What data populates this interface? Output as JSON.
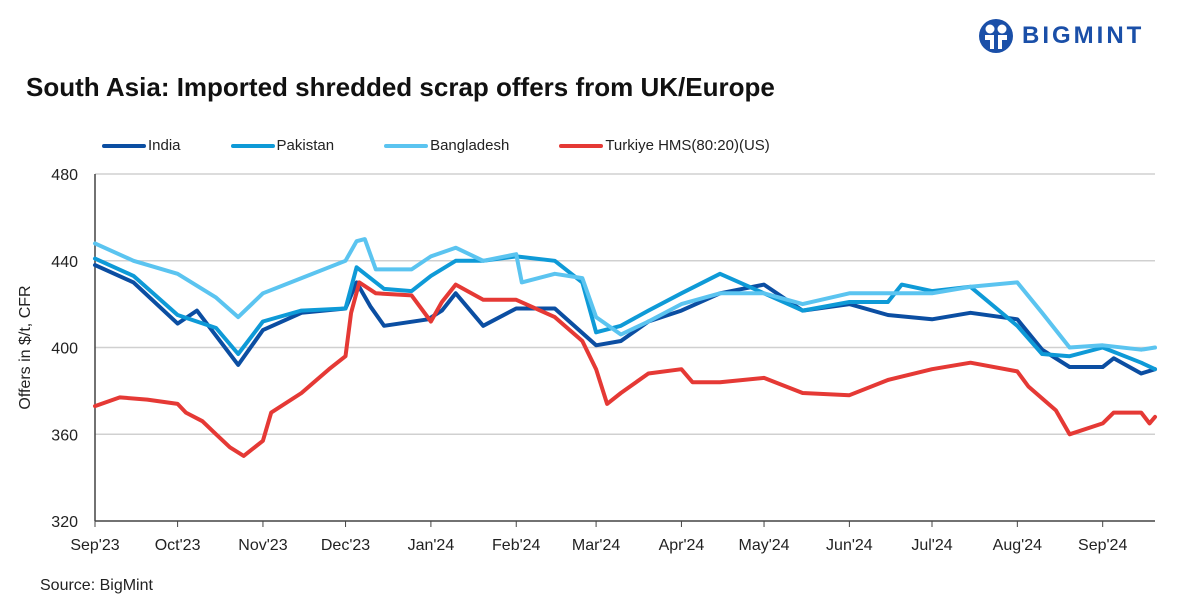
{
  "brand": {
    "name": "BIGMINT",
    "color": "#1a4fa8"
  },
  "title": "South Asia: Imported shredded scrap offers from UK/Europe",
  "source": "Source: BigMint",
  "chart_data": {
    "type": "line",
    "title": "South Asia: Imported shredded scrap offers from UK/Europe",
    "xlabel": "",
    "ylabel": "Offers in $/t, CFR",
    "ylim": [
      320,
      480
    ],
    "yticks": [
      "320",
      "360",
      "400",
      "440",
      "480"
    ],
    "xlim": [
      "2023-09-01",
      "2024-09-20"
    ],
    "xticks": [
      {
        "label": "Sep'23",
        "date": "2023-09-01"
      },
      {
        "label": "Oct'23",
        "date": "2023-10-01"
      },
      {
        "label": "Nov'23",
        "date": "2023-11-01"
      },
      {
        "label": "Dec'23",
        "date": "2023-12-01"
      },
      {
        "label": "Jan'24",
        "date": "2024-01-01"
      },
      {
        "label": "Feb'24",
        "date": "2024-02-01"
      },
      {
        "label": "Mar'24",
        "date": "2024-03-01"
      },
      {
        "label": "Apr'24",
        "date": "2024-04-01"
      },
      {
        "label": "May'24",
        "date": "2024-05-01"
      },
      {
        "label": "Jun'24",
        "date": "2024-06-01"
      },
      {
        "label": "Jul'24",
        "date": "2024-07-01"
      },
      {
        "label": "Aug'24",
        "date": "2024-08-01"
      },
      {
        "label": "Sep'24",
        "date": "2024-09-01"
      }
    ],
    "grid": "horizontal",
    "legend": "top-left",
    "series": [
      {
        "name": "India",
        "color": "#0b4ea2",
        "points": [
          [
            "2023-09-01",
            438
          ],
          [
            "2023-09-15",
            430
          ],
          [
            "2023-10-01",
            411
          ],
          [
            "2023-10-08",
            417
          ],
          [
            "2023-10-23",
            392
          ],
          [
            "2023-11-01",
            408
          ],
          [
            "2023-11-15",
            416
          ],
          [
            "2023-12-01",
            418
          ],
          [
            "2023-12-05",
            430
          ],
          [
            "2023-12-10",
            419
          ],
          [
            "2023-12-15",
            410
          ],
          [
            "2023-12-31",
            413
          ],
          [
            "2024-01-05",
            417
          ],
          [
            "2024-01-10",
            425
          ],
          [
            "2024-01-20",
            410
          ],
          [
            "2024-02-01",
            418
          ],
          [
            "2024-02-15",
            418
          ],
          [
            "2024-03-01",
            401
          ],
          [
            "2024-03-10",
            403
          ],
          [
            "2024-03-20",
            412
          ],
          [
            "2024-04-01",
            417
          ],
          [
            "2024-04-15",
            425
          ],
          [
            "2024-05-01",
            429
          ],
          [
            "2024-05-15",
            417
          ],
          [
            "2024-06-01",
            420
          ],
          [
            "2024-06-15",
            415
          ],
          [
            "2024-07-01",
            413
          ],
          [
            "2024-07-15",
            416
          ],
          [
            "2024-08-01",
            413
          ],
          [
            "2024-08-10",
            399
          ],
          [
            "2024-08-20",
            391
          ],
          [
            "2024-09-01",
            391
          ],
          [
            "2024-09-05",
            395
          ],
          [
            "2024-09-15",
            388
          ],
          [
            "2024-09-20",
            390
          ]
        ]
      },
      {
        "name": "Pakistan",
        "color": "#0e9ad7",
        "points": [
          [
            "2023-09-01",
            441
          ],
          [
            "2023-09-15",
            433
          ],
          [
            "2023-10-01",
            415
          ],
          [
            "2023-10-15",
            409
          ],
          [
            "2023-10-23",
            397
          ],
          [
            "2023-11-01",
            412
          ],
          [
            "2023-11-15",
            417
          ],
          [
            "2023-12-01",
            418
          ],
          [
            "2023-12-05",
            437
          ],
          [
            "2023-12-15",
            427
          ],
          [
            "2023-12-25",
            426
          ],
          [
            "2024-01-01",
            433
          ],
          [
            "2024-01-10",
            440
          ],
          [
            "2024-01-20",
            440
          ],
          [
            "2024-02-01",
            442
          ],
          [
            "2024-02-15",
            440
          ],
          [
            "2024-02-25",
            430
          ],
          [
            "2024-03-01",
            407
          ],
          [
            "2024-03-10",
            410
          ],
          [
            "2024-03-20",
            417
          ],
          [
            "2024-04-01",
            425
          ],
          [
            "2024-04-15",
            434
          ],
          [
            "2024-05-01",
            425
          ],
          [
            "2024-05-15",
            417
          ],
          [
            "2024-06-01",
            421
          ],
          [
            "2024-06-15",
            421
          ],
          [
            "2024-06-20",
            429
          ],
          [
            "2024-07-01",
            426
          ],
          [
            "2024-07-15",
            428
          ],
          [
            "2024-08-01",
            410
          ],
          [
            "2024-08-10",
            397
          ],
          [
            "2024-08-20",
            396
          ],
          [
            "2024-09-01",
            400
          ],
          [
            "2024-09-15",
            393
          ],
          [
            "2024-09-20",
            390
          ]
        ]
      },
      {
        "name": "Bangladesh",
        "color": "#5bc4f0",
        "points": [
          [
            "2023-09-01",
            448
          ],
          [
            "2023-09-15",
            440
          ],
          [
            "2023-10-01",
            434
          ],
          [
            "2023-10-15",
            423
          ],
          [
            "2023-10-23",
            414
          ],
          [
            "2023-11-01",
            425
          ],
          [
            "2023-11-15",
            432
          ],
          [
            "2023-12-01",
            440
          ],
          [
            "2023-12-05",
            449
          ],
          [
            "2023-12-08",
            450
          ],
          [
            "2023-12-12",
            436
          ],
          [
            "2023-12-25",
            436
          ],
          [
            "2024-01-01",
            442
          ],
          [
            "2024-01-10",
            446
          ],
          [
            "2024-01-20",
            440
          ],
          [
            "2024-02-01",
            443
          ],
          [
            "2024-02-03",
            430
          ],
          [
            "2024-02-15",
            434
          ],
          [
            "2024-02-25",
            432
          ],
          [
            "2024-03-01",
            414
          ],
          [
            "2024-03-10",
            406
          ],
          [
            "2024-03-20",
            412
          ],
          [
            "2024-04-01",
            420
          ],
          [
            "2024-04-15",
            425
          ],
          [
            "2024-05-01",
            425
          ],
          [
            "2024-05-15",
            420
          ],
          [
            "2024-06-01",
            425
          ],
          [
            "2024-06-15",
            425
          ],
          [
            "2024-07-01",
            425
          ],
          [
            "2024-07-15",
            428
          ],
          [
            "2024-08-01",
            430
          ],
          [
            "2024-08-10",
            416
          ],
          [
            "2024-08-20",
            400
          ],
          [
            "2024-09-01",
            401
          ],
          [
            "2024-09-15",
            399
          ],
          [
            "2024-09-20",
            400
          ]
        ]
      },
      {
        "name": "Turkiye HMS(80:20)(US)",
        "color": "#e53935",
        "points": [
          [
            "2023-09-01",
            373
          ],
          [
            "2023-09-10",
            377
          ],
          [
            "2023-09-20",
            376
          ],
          [
            "2023-10-01",
            374
          ],
          [
            "2023-10-04",
            370
          ],
          [
            "2023-10-10",
            366
          ],
          [
            "2023-10-15",
            360
          ],
          [
            "2023-10-20",
            354
          ],
          [
            "2023-10-25",
            350
          ],
          [
            "2023-11-01",
            357
          ],
          [
            "2023-11-04",
            370
          ],
          [
            "2023-11-15",
            379
          ],
          [
            "2023-11-25",
            390
          ],
          [
            "2023-12-01",
            396
          ],
          [
            "2023-12-03",
            416
          ],
          [
            "2023-12-06",
            430
          ],
          [
            "2023-12-12",
            425
          ],
          [
            "2023-12-25",
            424
          ],
          [
            "2024-01-01",
            412
          ],
          [
            "2024-01-05",
            421
          ],
          [
            "2024-01-10",
            429
          ],
          [
            "2024-01-20",
            422
          ],
          [
            "2024-02-01",
            422
          ],
          [
            "2024-02-15",
            414
          ],
          [
            "2024-02-25",
            403
          ],
          [
            "2024-03-01",
            390
          ],
          [
            "2024-03-05",
            374
          ],
          [
            "2024-03-10",
            379
          ],
          [
            "2024-03-20",
            388
          ],
          [
            "2024-04-01",
            390
          ],
          [
            "2024-04-05",
            384
          ],
          [
            "2024-04-15",
            384
          ],
          [
            "2024-05-01",
            386
          ],
          [
            "2024-05-15",
            379
          ],
          [
            "2024-06-01",
            378
          ],
          [
            "2024-06-15",
            385
          ],
          [
            "2024-07-01",
            390
          ],
          [
            "2024-07-15",
            393
          ],
          [
            "2024-08-01",
            389
          ],
          [
            "2024-08-05",
            382
          ],
          [
            "2024-08-15",
            371
          ],
          [
            "2024-08-20",
            360
          ],
          [
            "2024-09-01",
            365
          ],
          [
            "2024-09-05",
            370
          ],
          [
            "2024-09-15",
            370
          ],
          [
            "2024-09-18",
            365
          ],
          [
            "2024-09-20",
            368
          ]
        ]
      }
    ]
  }
}
